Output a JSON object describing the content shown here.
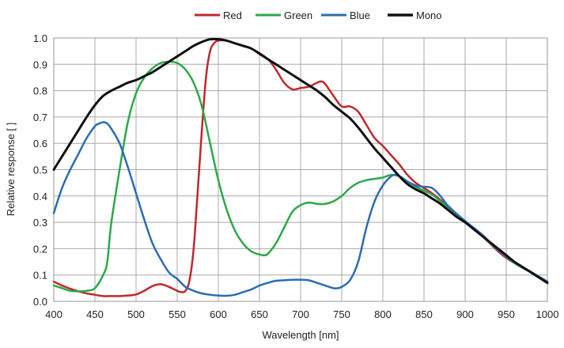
{
  "chart_data": {
    "type": "line",
    "title": "",
    "xlabel": "Wavelength [nm]",
    "ylabel": "Relative response [ ]",
    "xlim": [
      400,
      1000
    ],
    "ylim": [
      0,
      1.0
    ],
    "x_ticks": [
      "400",
      "450",
      "500",
      "550",
      "600",
      "650",
      "700",
      "750",
      "800",
      "850",
      "900",
      "950",
      "1000"
    ],
    "y_ticks": [
      "0.0",
      "0.1",
      "0.2",
      "0.3",
      "0.4",
      "0.5",
      "0.6",
      "0.7",
      "0.8",
      "0.9",
      "1.0"
    ],
    "x_tick_values": [
      400,
      450,
      500,
      550,
      600,
      650,
      700,
      750,
      800,
      850,
      900,
      950,
      1000
    ],
    "y_tick_values": [
      0,
      0.1,
      0.2,
      0.3,
      0.4,
      0.5,
      0.6,
      0.7,
      0.8,
      0.9,
      1.0
    ],
    "grid": true,
    "legend_position": "top-center",
    "series": [
      {
        "name": "Red",
        "color": "#c0282d",
        "points": [
          [
            400,
            0.075
          ],
          [
            410,
            0.06
          ],
          [
            420,
            0.048
          ],
          [
            430,
            0.038
          ],
          [
            440,
            0.03
          ],
          [
            450,
            0.025
          ],
          [
            460,
            0.02
          ],
          [
            470,
            0.02
          ],
          [
            480,
            0.02
          ],
          [
            490,
            0.022
          ],
          [
            500,
            0.026
          ],
          [
            510,
            0.04
          ],
          [
            520,
            0.058
          ],
          [
            530,
            0.065
          ],
          [
            540,
            0.055
          ],
          [
            550,
            0.04
          ],
          [
            555,
            0.035
          ],
          [
            560,
            0.04
          ],
          [
            565,
            0.08
          ],
          [
            570,
            0.2
          ],
          [
            575,
            0.42
          ],
          [
            580,
            0.65
          ],
          [
            585,
            0.85
          ],
          [
            590,
            0.95
          ],
          [
            595,
            0.98
          ],
          [
            600,
            0.99
          ],
          [
            610,
            0.99
          ],
          [
            620,
            0.98
          ],
          [
            640,
            0.96
          ],
          [
            660,
            0.92
          ],
          [
            670,
            0.88
          ],
          [
            680,
            0.83
          ],
          [
            690,
            0.805
          ],
          [
            700,
            0.81
          ],
          [
            710,
            0.815
          ],
          [
            720,
            0.83
          ],
          [
            725,
            0.835
          ],
          [
            730,
            0.825
          ],
          [
            740,
            0.78
          ],
          [
            750,
            0.74
          ],
          [
            760,
            0.74
          ],
          [
            770,
            0.72
          ],
          [
            780,
            0.67
          ],
          [
            790,
            0.62
          ],
          [
            800,
            0.59
          ],
          [
            810,
            0.555
          ],
          [
            820,
            0.52
          ],
          [
            830,
            0.48
          ],
          [
            840,
            0.45
          ],
          [
            850,
            0.43
          ],
          [
            860,
            0.41
          ],
          [
            870,
            0.385
          ],
          [
            880,
            0.36
          ],
          [
            890,
            0.33
          ],
          [
            900,
            0.3
          ],
          [
            920,
            0.25
          ],
          [
            940,
            0.19
          ],
          [
            950,
            0.165
          ],
          [
            960,
            0.145
          ],
          [
            980,
            0.11
          ],
          [
            1000,
            0.075
          ]
        ]
      },
      {
        "name": "Green",
        "color": "#2da84a",
        "points": [
          [
            400,
            0.06
          ],
          [
            410,
            0.05
          ],
          [
            420,
            0.04
          ],
          [
            430,
            0.038
          ],
          [
            440,
            0.04
          ],
          [
            450,
            0.05
          ],
          [
            460,
            0.1
          ],
          [
            465,
            0.15
          ],
          [
            470,
            0.3
          ],
          [
            480,
            0.5
          ],
          [
            490,
            0.68
          ],
          [
            500,
            0.79
          ],
          [
            510,
            0.85
          ],
          [
            520,
            0.885
          ],
          [
            530,
            0.905
          ],
          [
            540,
            0.91
          ],
          [
            550,
            0.905
          ],
          [
            560,
            0.88
          ],
          [
            570,
            0.83
          ],
          [
            580,
            0.74
          ],
          [
            590,
            0.6
          ],
          [
            600,
            0.46
          ],
          [
            610,
            0.35
          ],
          [
            620,
            0.27
          ],
          [
            630,
            0.22
          ],
          [
            640,
            0.19
          ],
          [
            650,
            0.178
          ],
          [
            655,
            0.175
          ],
          [
            660,
            0.18
          ],
          [
            670,
            0.22
          ],
          [
            680,
            0.28
          ],
          [
            690,
            0.34
          ],
          [
            700,
            0.365
          ],
          [
            710,
            0.375
          ],
          [
            720,
            0.37
          ],
          [
            730,
            0.37
          ],
          [
            740,
            0.38
          ],
          [
            750,
            0.4
          ],
          [
            760,
            0.43
          ],
          [
            770,
            0.45
          ],
          [
            780,
            0.46
          ],
          [
            790,
            0.465
          ],
          [
            800,
            0.47
          ],
          [
            810,
            0.48
          ],
          [
            820,
            0.475
          ],
          [
            830,
            0.455
          ],
          [
            840,
            0.435
          ],
          [
            850,
            0.42
          ],
          [
            860,
            0.405
          ],
          [
            870,
            0.38
          ],
          [
            880,
            0.355
          ],
          [
            900,
            0.3
          ],
          [
            920,
            0.25
          ],
          [
            940,
            0.195
          ],
          [
            960,
            0.145
          ],
          [
            980,
            0.11
          ],
          [
            1000,
            0.075
          ]
        ]
      },
      {
        "name": "Blue",
        "color": "#2b6cb3",
        "points": [
          [
            400,
            0.335
          ],
          [
            410,
            0.43
          ],
          [
            420,
            0.5
          ],
          [
            430,
            0.56
          ],
          [
            440,
            0.62
          ],
          [
            450,
            0.665
          ],
          [
            455,
            0.675
          ],
          [
            460,
            0.68
          ],
          [
            465,
            0.675
          ],
          [
            470,
            0.655
          ],
          [
            480,
            0.6
          ],
          [
            490,
            0.51
          ],
          [
            500,
            0.41
          ],
          [
            510,
            0.31
          ],
          [
            520,
            0.22
          ],
          [
            530,
            0.16
          ],
          [
            540,
            0.11
          ],
          [
            550,
            0.085
          ],
          [
            560,
            0.055
          ],
          [
            570,
            0.04
          ],
          [
            580,
            0.03
          ],
          [
            590,
            0.025
          ],
          [
            600,
            0.022
          ],
          [
            610,
            0.021
          ],
          [
            620,
            0.025
          ],
          [
            630,
            0.035
          ],
          [
            640,
            0.045
          ],
          [
            650,
            0.06
          ],
          [
            660,
            0.07
          ],
          [
            670,
            0.078
          ],
          [
            680,
            0.08
          ],
          [
            690,
            0.082
          ],
          [
            700,
            0.082
          ],
          [
            710,
            0.08
          ],
          [
            720,
            0.07
          ],
          [
            730,
            0.06
          ],
          [
            740,
            0.05
          ],
          [
            745,
            0.05
          ],
          [
            750,
            0.055
          ],
          [
            760,
            0.08
          ],
          [
            770,
            0.15
          ],
          [
            780,
            0.28
          ],
          [
            790,
            0.38
          ],
          [
            800,
            0.44
          ],
          [
            810,
            0.475
          ],
          [
            815,
            0.48
          ],
          [
            820,
            0.475
          ],
          [
            830,
            0.455
          ],
          [
            840,
            0.44
          ],
          [
            850,
            0.435
          ],
          [
            860,
            0.43
          ],
          [
            870,
            0.4
          ],
          [
            880,
            0.36
          ],
          [
            900,
            0.305
          ],
          [
            920,
            0.255
          ],
          [
            940,
            0.195
          ],
          [
            960,
            0.148
          ],
          [
            980,
            0.112
          ],
          [
            1000,
            0.075
          ]
        ]
      },
      {
        "name": "Mono",
        "color": "#111111",
        "points": [
          [
            400,
            0.5
          ],
          [
            410,
            0.55
          ],
          [
            420,
            0.6
          ],
          [
            430,
            0.65
          ],
          [
            440,
            0.7
          ],
          [
            450,
            0.745
          ],
          [
            460,
            0.78
          ],
          [
            470,
            0.8
          ],
          [
            480,
            0.815
          ],
          [
            490,
            0.83
          ],
          [
            500,
            0.84
          ],
          [
            510,
            0.855
          ],
          [
            520,
            0.87
          ],
          [
            530,
            0.89
          ],
          [
            540,
            0.91
          ],
          [
            550,
            0.93
          ],
          [
            560,
            0.95
          ],
          [
            570,
            0.97
          ],
          [
            580,
            0.985
          ],
          [
            590,
            0.995
          ],
          [
            600,
            0.995
          ],
          [
            610,
            0.99
          ],
          [
            620,
            0.98
          ],
          [
            630,
            0.97
          ],
          [
            640,
            0.96
          ],
          [
            650,
            0.94
          ],
          [
            660,
            0.92
          ],
          [
            670,
            0.9
          ],
          [
            680,
            0.88
          ],
          [
            690,
            0.86
          ],
          [
            700,
            0.84
          ],
          [
            710,
            0.82
          ],
          [
            720,
            0.8
          ],
          [
            730,
            0.775
          ],
          [
            740,
            0.745
          ],
          [
            750,
            0.72
          ],
          [
            760,
            0.695
          ],
          [
            770,
            0.66
          ],
          [
            780,
            0.62
          ],
          [
            790,
            0.58
          ],
          [
            800,
            0.545
          ],
          [
            810,
            0.51
          ],
          [
            820,
            0.475
          ],
          [
            830,
            0.445
          ],
          [
            840,
            0.425
          ],
          [
            850,
            0.41
          ],
          [
            860,
            0.39
          ],
          [
            870,
            0.37
          ],
          [
            880,
            0.345
          ],
          [
            890,
            0.32
          ],
          [
            900,
            0.3
          ],
          [
            910,
            0.275
          ],
          [
            920,
            0.25
          ],
          [
            930,
            0.225
          ],
          [
            940,
            0.2
          ],
          [
            950,
            0.175
          ],
          [
            960,
            0.15
          ],
          [
            970,
            0.13
          ],
          [
            980,
            0.11
          ],
          [
            990,
            0.09
          ],
          [
            1000,
            0.07
          ]
        ]
      }
    ]
  }
}
